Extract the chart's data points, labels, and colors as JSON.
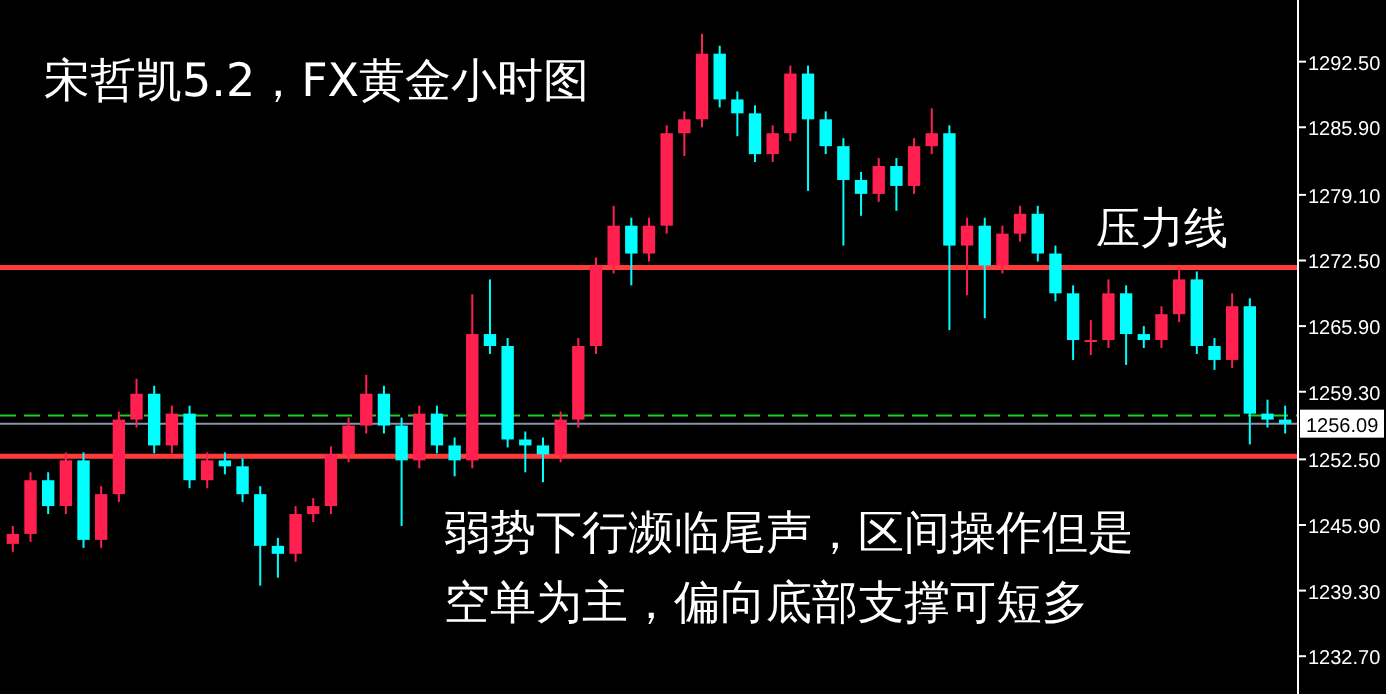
{
  "chart_data": {
    "type": "candlestick",
    "title": "宋哲凯5.2，FX黄金小时图",
    "categories": [
      null,
      null,
      null,
      null,
      null,
      null,
      null,
      null,
      null,
      null,
      null,
      null,
      null,
      null,
      null,
      null,
      null,
      null,
      null,
      null,
      null,
      null,
      null,
      null,
      null,
      null,
      null,
      null,
      null,
      null,
      null,
      null,
      null,
      null,
      null,
      null,
      null,
      null,
      null,
      null,
      null,
      null,
      null,
      null,
      null,
      null,
      null,
      null,
      null,
      null,
      null,
      null,
      null,
      null,
      null,
      null,
      null,
      null,
      null,
      null,
      null,
      null,
      null,
      null,
      null,
      null,
      null,
      null,
      null,
      null,
      null,
      null,
      null
    ],
    "ohlc": [
      [
        1244.0,
        1245.8,
        1243.2,
        1245.0
      ],
      [
        1245.0,
        1251.2,
        1244.2,
        1250.4
      ],
      [
        1250.4,
        1251.2,
        1247.0,
        1247.8
      ],
      [
        1247.8,
        1253.2,
        1247.0,
        1252.4
      ],
      [
        1252.4,
        1253.2,
        1243.6,
        1244.4
      ],
      [
        1244.4,
        1249.8,
        1243.6,
        1249.0
      ],
      [
        1249.0,
        1257.3,
        1248.2,
        1256.5
      ],
      [
        1256.5,
        1260.6,
        1255.7,
        1259.1
      ],
      [
        1259.1,
        1259.9,
        1253.1,
        1253.9
      ],
      [
        1253.9,
        1257.9,
        1253.1,
        1257.1
      ],
      [
        1257.1,
        1257.9,
        1249.6,
        1250.4
      ],
      [
        1250.4,
        1253.2,
        1249.6,
        1252.4
      ],
      [
        1252.4,
        1253.2,
        1251.0,
        1251.8
      ],
      [
        1251.8,
        1252.6,
        1248.2,
        1249.0
      ],
      [
        1249.0,
        1249.8,
        1239.8,
        1243.8
      ],
      [
        1243.8,
        1244.6,
        1240.6,
        1243.0
      ],
      [
        1243.0,
        1247.8,
        1242.2,
        1247.0
      ],
      [
        1247.0,
        1248.6,
        1246.2,
        1247.8
      ],
      [
        1247.8,
        1253.8,
        1247.0,
        1253.0
      ],
      [
        1253.0,
        1256.7,
        1252.2,
        1255.9
      ],
      [
        1255.9,
        1261.0,
        1255.1,
        1259.1
      ],
      [
        1259.1,
        1259.9,
        1255.1,
        1255.9
      ],
      [
        1255.9,
        1256.7,
        1245.8,
        1252.4
      ],
      [
        1252.4,
        1257.9,
        1251.6,
        1257.1
      ],
      [
        1257.1,
        1257.9,
        1253.1,
        1253.9
      ],
      [
        1253.9,
        1254.7,
        1250.8,
        1252.4
      ],
      [
        1252.4,
        1269.1,
        1251.6,
        1265.1
      ],
      [
        1265.1,
        1270.6,
        1263.1,
        1263.9
      ],
      [
        1263.9,
        1264.7,
        1253.7,
        1254.5
      ],
      [
        1254.5,
        1255.3,
        1251.2,
        1253.9
      ],
      [
        1253.9,
        1254.7,
        1250.2,
        1253.0
      ],
      [
        1253.0,
        1257.3,
        1252.2,
        1256.5
      ],
      [
        1256.5,
        1264.7,
        1255.7,
        1263.9
      ],
      [
        1263.9,
        1272.8,
        1263.1,
        1272.0
      ],
      [
        1272.0,
        1278.0,
        1271.2,
        1276.0
      ],
      [
        1276.0,
        1276.8,
        1270.0,
        1273.2
      ],
      [
        1273.2,
        1276.8,
        1272.4,
        1276.0
      ],
      [
        1276.0,
        1286.1,
        1275.2,
        1285.3
      ],
      [
        1285.3,
        1287.5,
        1283.0,
        1286.7
      ],
      [
        1286.7,
        1295.3,
        1285.9,
        1293.3
      ],
      [
        1293.3,
        1294.1,
        1287.9,
        1288.7
      ],
      [
        1288.7,
        1289.5,
        1285.0,
        1287.3
      ],
      [
        1287.3,
        1288.1,
        1282.4,
        1283.2
      ],
      [
        1283.2,
        1286.1,
        1282.4,
        1285.3
      ],
      [
        1285.3,
        1292.1,
        1284.5,
        1291.3
      ],
      [
        1291.3,
        1292.1,
        1279.5,
        1286.7
      ],
      [
        1286.7,
        1287.5,
        1283.2,
        1284.0
      ],
      [
        1284.0,
        1284.8,
        1274.0,
        1280.6
      ],
      [
        1280.6,
        1281.4,
        1277.0,
        1279.2
      ],
      [
        1279.2,
        1282.8,
        1278.4,
        1282.0
      ],
      [
        1282.0,
        1282.8,
        1277.5,
        1280.0
      ],
      [
        1280.0,
        1284.8,
        1279.2,
        1284.0
      ],
      [
        1284.0,
        1287.8,
        1283.2,
        1285.3
      ],
      [
        1285.3,
        1286.1,
        1265.5,
        1274.0
      ],
      [
        1274.0,
        1276.8,
        1269.0,
        1276.0
      ],
      [
        1276.0,
        1276.8,
        1266.7,
        1272.0
      ],
      [
        1272.0,
        1276.0,
        1271.2,
        1275.2
      ],
      [
        1275.2,
        1278.0,
        1274.4,
        1277.2
      ],
      [
        1277.2,
        1278.0,
        1272.4,
        1273.2
      ],
      [
        1273.2,
        1274.0,
        1268.4,
        1269.2
      ],
      [
        1269.2,
        1270.0,
        1262.5,
        1264.5
      ],
      [
        1264.5,
        1266.5,
        1263.0,
        1264.5
      ],
      [
        1264.5,
        1270.6,
        1263.7,
        1269.2
      ],
      [
        1269.2,
        1270.0,
        1262.0,
        1265.1
      ],
      [
        1265.1,
        1265.9,
        1263.7,
        1264.5
      ],
      [
        1264.5,
        1267.9,
        1263.7,
        1267.1
      ],
      [
        1267.1,
        1271.8,
        1266.3,
        1270.6
      ],
      [
        1270.6,
        1271.4,
        1263.1,
        1263.9
      ],
      [
        1263.9,
        1264.7,
        1261.5,
        1262.5
      ],
      [
        1262.5,
        1269.2,
        1261.7,
        1267.9
      ],
      [
        1267.9,
        1268.7,
        1254.0,
        1257.1
      ],
      [
        1257.1,
        1258.5,
        1255.7,
        1256.5
      ],
      [
        1256.5,
        1257.9,
        1255.1,
        1256.09
      ]
    ],
    "colors": [
      "#ff2050",
      "#ff2050",
      "#00ffff",
      "#ff2050",
      "#00ffff",
      "#ff2050",
      "#ff2050",
      "#ff2050",
      "#00ffff",
      "#ff2050",
      "#00ffff",
      "#ff2050",
      "#00ffff",
      "#00ffff",
      "#00ffff",
      "#00ffff",
      "#ff2050",
      "#ff2050",
      "#ff2050",
      "#ff2050",
      "#ff2050",
      "#00ffff",
      "#00ffff",
      "#ff2050",
      "#00ffff",
      "#00ffff",
      "#ff2050",
      "#00ffff",
      "#00ffff",
      "#00ffff",
      "#00ffff",
      "#ff2050",
      "#ff2050",
      "#ff2050",
      "#ff2050",
      "#00ffff",
      "#ff2050",
      "#ff2050",
      "#ff2050",
      "#ff2050",
      "#00ffff",
      "#00ffff",
      "#00ffff",
      "#ff2050",
      "#ff2050",
      "#00ffff",
      "#00ffff",
      "#00ffff",
      "#00ffff",
      "#ff2050",
      "#00ffff",
      "#ff2050",
      "#ff2050",
      "#00ffff",
      "#ff2050",
      "#00ffff",
      "#ff2050",
      "#ff2050",
      "#00ffff",
      "#00ffff",
      "#00ffff",
      "#ff2050",
      "#ff2050",
      "#00ffff",
      "#00ffff",
      "#ff2050",
      "#ff2050",
      "#00ffff",
      "#00ffff",
      "#ff2050",
      "#00ffff",
      "#00ffff",
      "#00ffff"
    ],
    "ylim": [
      1228.9,
      1298.7
    ],
    "yticks": [
      {
        "value": 1232.7,
        "label": "1232.70"
      },
      {
        "value": 1239.3,
        "label": "1239.30"
      },
      {
        "value": 1245.9,
        "label": "1245.90"
      },
      {
        "value": 1252.5,
        "label": "1252.50"
      },
      {
        "value": 1259.3,
        "label": "1259.30"
      },
      {
        "value": 1265.9,
        "label": "1265.90"
      },
      {
        "value": 1272.5,
        "label": "1272.50"
      },
      {
        "value": 1279.1,
        "label": "1279.10"
      },
      {
        "value": 1285.9,
        "label": "1285.90"
      },
      {
        "value": 1292.5,
        "label": "1292.50"
      }
    ],
    "ref_lines": [
      {
        "axis": "y",
        "value": 1271.8,
        "label": "压力线",
        "color": "#ff3b3b"
      },
      {
        "axis": "y",
        "value": 1252.8,
        "color": "#ff3b3b"
      },
      {
        "axis": "y",
        "value": 1256.9,
        "color": "#22cc22",
        "line_style": "dashed"
      },
      {
        "axis": "y",
        "value": 1256.09,
        "label": "1256.09",
        "color": "#8a94a6"
      }
    ],
    "annotations": [
      "弱势下行濒临尾声，区间操作但是",
      "空单为主，偏向底部支撑可短多"
    ],
    "grid": false
  }
}
